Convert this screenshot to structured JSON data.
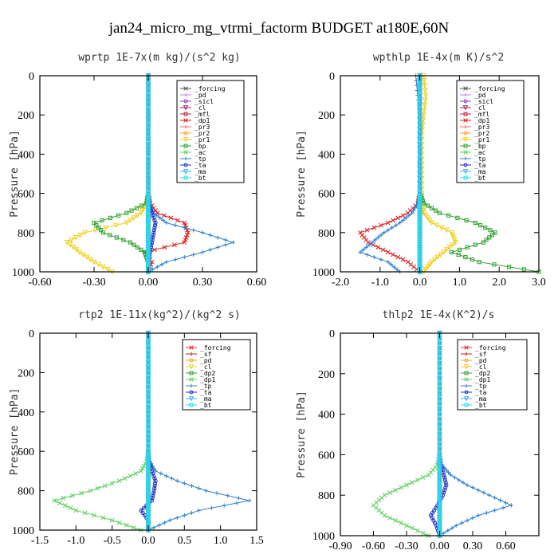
{
  "title": "jan24_micro_mg_vtrmi_factorm  BUDGET at180E,60N",
  "chart_data": [
    {
      "type": "line",
      "subtitle": "wprtp  1E-7x(m kg)/(s^2 kg)",
      "ylabel": "Pressure [hPa]",
      "xlim": [
        -0.6,
        0.6
      ],
      "ylim": [
        1000,
        0
      ],
      "xticks": [
        "-0.60",
        "-0.30",
        "0.00",
        "0.30",
        "0.60"
      ],
      "yticks": [
        "0",
        "200",
        "400",
        "600",
        "800",
        "1000"
      ],
      "pressure": [
        0,
        100,
        200,
        300,
        400,
        500,
        600,
        650,
        700,
        750,
        800,
        850,
        900,
        950,
        1000
      ],
      "series": [
        {
          "name": "_forcing",
          "color": "#555555",
          "values": [
            0,
            0,
            0,
            0,
            0,
            0,
            0,
            0,
            0,
            0,
            0,
            0,
            0,
            0,
            0
          ]
        },
        {
          "name": "_pd",
          "color": "#c080e0",
          "values": [
            0,
            0,
            0,
            0,
            0,
            0,
            0,
            0,
            0,
            0,
            0,
            0,
            0,
            0,
            0
          ]
        },
        {
          "name": "_sicl",
          "color": "#8040c0",
          "values": [
            0,
            0,
            0,
            0,
            0,
            0,
            0,
            0,
            0,
            0,
            0,
            0,
            0,
            0,
            0
          ]
        },
        {
          "name": "_cl",
          "color": "#a02060",
          "values": [
            0,
            0,
            0,
            0,
            0,
            0,
            0,
            0,
            0,
            0,
            0,
            0,
            0,
            0,
            0
          ]
        },
        {
          "name": "_mfl",
          "color": "#c02040",
          "values": [
            0,
            0,
            0,
            0,
            0,
            0,
            0,
            0,
            0,
            0,
            0,
            0,
            0,
            0,
            0
          ]
        },
        {
          "name": "_dp1",
          "color": "#e02020",
          "values": [
            0,
            0,
            0,
            0,
            0,
            0,
            0,
            0.01,
            0.05,
            0.2,
            0.22,
            0.2,
            -0.02,
            0.02,
            0
          ]
        },
        {
          "name": "_pr3",
          "color": "#ff6060",
          "values": [
            0,
            0,
            0,
            0,
            0,
            0,
            0,
            0,
            0,
            0,
            0,
            0,
            0,
            0,
            0
          ]
        },
        {
          "name": "_pr2",
          "color": "#ffa030",
          "values": [
            0,
            0,
            0,
            0,
            0,
            0,
            0,
            0,
            0,
            0,
            0,
            0,
            0,
            0,
            0
          ]
        },
        {
          "name": "_pr1",
          "color": "#f0d020",
          "values": [
            0,
            0,
            0,
            0,
            0,
            0,
            0,
            -0.01,
            -0.04,
            -0.12,
            -0.35,
            -0.45,
            -0.38,
            -0.3,
            -0.2
          ]
        },
        {
          "name": "_bp",
          "color": "#30a030",
          "values": [
            0,
            0,
            0,
            0,
            0,
            0,
            0,
            -0.01,
            -0.12,
            -0.3,
            -0.25,
            -0.1,
            -0.02,
            0,
            0
          ]
        },
        {
          "name": "_ac",
          "color": "#60d060",
          "values": [
            0,
            0,
            0,
            0,
            0,
            0,
            0,
            0,
            0,
            0,
            0,
            0,
            0,
            0,
            0
          ]
        },
        {
          "name": "_tp",
          "color": "#3080d0",
          "values": [
            0,
            0,
            0,
            0,
            0,
            0,
            0,
            0.01,
            0.03,
            0.1,
            0.3,
            0.47,
            0.3,
            0.1,
            0
          ]
        },
        {
          "name": "_ta",
          "color": "#2030c0",
          "values": [
            0,
            0,
            0,
            0,
            0,
            0,
            0,
            0,
            0.02,
            0.04,
            0.03,
            0.02,
            0.01,
            0,
            0
          ]
        },
        {
          "name": "_ma",
          "color": "#40b0f0",
          "values": [
            0,
            0,
            0,
            0,
            0,
            0,
            0,
            0,
            0,
            0,
            0,
            0,
            0,
            0,
            0
          ]
        },
        {
          "name": "_bt",
          "color": "#20e0f0",
          "values": [
            0,
            0,
            0,
            0,
            0,
            0,
            0,
            0,
            0,
            0,
            0,
            0,
            0,
            0,
            0
          ]
        }
      ]
    },
    {
      "type": "line",
      "subtitle": "wpthlp  1E-4x(m K)/s^2",
      "ylabel": "Pressure [hPa]",
      "xlim": [
        -2.0,
        3.0
      ],
      "ylim": [
        1000,
        0
      ],
      "xticks": [
        "-2.0",
        "-1.0",
        "0.0",
        "1.0",
        "2.0",
        "3.0"
      ],
      "yticks": [
        "0",
        "200",
        "400",
        "600",
        "800",
        "1000"
      ],
      "pressure": [
        0,
        100,
        200,
        300,
        400,
        500,
        600,
        650,
        700,
        750,
        800,
        850,
        900,
        950,
        1000
      ],
      "series": [
        {
          "name": "_forcing",
          "color": "#555555",
          "values": [
            0,
            0,
            0,
            0,
            0,
            0,
            0,
            0,
            0,
            0,
            0,
            0,
            0,
            0,
            0
          ]
        },
        {
          "name": "_pd",
          "color": "#c080e0",
          "values": [
            0,
            0,
            0,
            0,
            0,
            0,
            0,
            0,
            0,
            0,
            0,
            0,
            0,
            0,
            0
          ]
        },
        {
          "name": "_sicl",
          "color": "#8040c0",
          "values": [
            0,
            0,
            0,
            0,
            0,
            0,
            0,
            0,
            0,
            0,
            0,
            0,
            0,
            0,
            0
          ]
        },
        {
          "name": "_cl",
          "color": "#a02060",
          "values": [
            0,
            0,
            0,
            0,
            0,
            0,
            0,
            0,
            0,
            0,
            0,
            0,
            0,
            0,
            0
          ]
        },
        {
          "name": "_mfl",
          "color": "#c02040",
          "values": [
            0,
            0,
            0,
            0,
            0,
            0,
            0,
            0,
            0,
            0,
            0,
            0,
            0,
            0,
            0
          ]
        },
        {
          "name": "_dp1",
          "color": "#e02020",
          "values": [
            0,
            0,
            0,
            0,
            0,
            0,
            0,
            -0.05,
            -0.3,
            -0.8,
            -1.5,
            -1.3,
            -0.8,
            -0.3,
            0
          ]
        },
        {
          "name": "_pr3",
          "color": "#ff6060",
          "values": [
            0,
            0,
            0,
            0,
            0,
            0,
            0,
            0,
            0,
            0,
            0,
            0,
            0,
            0,
            0
          ]
        },
        {
          "name": "_pr2",
          "color": "#ffa030",
          "values": [
            0,
            0,
            0,
            0,
            0,
            0,
            0,
            0,
            0,
            0,
            0,
            0,
            0,
            0,
            0
          ]
        },
        {
          "name": "_pr1",
          "color": "#f0d020",
          "values": [
            0.1,
            0.15,
            0.1,
            0.05,
            0.05,
            0.05,
            0.05,
            0.05,
            0.1,
            0.3,
            0.8,
            0.9,
            0.6,
            0.3,
            0.1
          ]
        },
        {
          "name": "_bp",
          "color": "#30a030",
          "values": [
            0,
            0,
            0,
            0,
            0,
            0,
            0,
            0.1,
            0.5,
            1.4,
            1.9,
            1.6,
            0.8,
            1.5,
            3.0
          ]
        },
        {
          "name": "_ac",
          "color": "#60d060",
          "values": [
            0,
            0,
            0,
            0,
            0,
            0,
            0,
            0,
            0,
            0,
            0,
            0,
            0,
            0,
            0
          ]
        },
        {
          "name": "_tp",
          "color": "#3080d0",
          "values": [
            -0.1,
            -0.05,
            0,
            0,
            0,
            0,
            0,
            -0.05,
            -0.2,
            -0.5,
            -0.9,
            -1.2,
            -1.5,
            -0.8,
            -0.5
          ]
        },
        {
          "name": "_ta",
          "color": "#2030c0",
          "values": [
            0,
            0,
            0,
            0,
            0,
            0,
            0,
            0,
            0,
            0,
            0,
            0,
            0,
            0,
            0
          ]
        },
        {
          "name": "_ma",
          "color": "#40b0f0",
          "values": [
            0,
            0,
            0,
            0,
            0,
            0,
            0,
            0,
            0,
            0,
            0,
            0,
            0,
            0,
            0
          ]
        },
        {
          "name": "_bt",
          "color": "#20e0f0",
          "values": [
            0,
            0,
            0,
            0,
            0,
            0,
            0,
            0,
            0,
            0,
            0,
            0,
            0,
            0,
            0
          ]
        }
      ]
    },
    {
      "type": "line",
      "subtitle": "rtp2  1E-11x(kg^2)/(kg^2 s)",
      "ylabel": "Pressure [hPa]",
      "xlim": [
        -1.5,
        1.5
      ],
      "ylim": [
        1000,
        0
      ],
      "xticks": [
        "-1.5",
        "-1.0",
        "-0.5",
        "0.0",
        "0.5",
        "1.0",
        "1.5"
      ],
      "yticks": [
        "0",
        "200",
        "400",
        "600",
        "800",
        "1000"
      ],
      "pressure": [
        0,
        100,
        200,
        300,
        400,
        500,
        600,
        650,
        700,
        750,
        800,
        850,
        900,
        950,
        1000
      ],
      "series": [
        {
          "name": "_forcing",
          "color": "#e03030",
          "values": [
            0,
            0,
            0,
            0,
            0,
            0,
            0,
            0,
            0,
            0,
            0,
            0,
            0,
            0,
            0
          ]
        },
        {
          "name": "_sf",
          "color": "#c02020",
          "values": [
            0,
            0,
            0,
            0,
            0,
            0,
            0,
            0,
            0,
            0,
            0,
            0,
            0,
            0,
            0
          ]
        },
        {
          "name": "_pd",
          "color": "#ffa030",
          "values": [
            0,
            0,
            0,
            0,
            0,
            0,
            0,
            0,
            0,
            0,
            0,
            0,
            0,
            0,
            0
          ]
        },
        {
          "name": "_cl",
          "color": "#f0d020",
          "values": [
            0,
            0,
            0,
            0,
            0,
            0,
            0,
            0,
            0,
            0,
            0,
            0,
            0,
            0,
            0
          ]
        },
        {
          "name": "_dp2",
          "color": "#30a030",
          "values": [
            0,
            0,
            0,
            0,
            0,
            0,
            0,
            0,
            0,
            0,
            0,
            0,
            0,
            0,
            0
          ]
        },
        {
          "name": "_dp1",
          "color": "#60d060",
          "values": [
            0,
            0,
            0,
            0,
            0,
            0,
            0,
            -0.02,
            -0.1,
            -0.4,
            -0.8,
            -1.3,
            -1.0,
            -0.5,
            -0.1
          ]
        },
        {
          "name": "_tp",
          "color": "#3080d0",
          "values": [
            0,
            0,
            0,
            0,
            0,
            0,
            0,
            0.02,
            0.1,
            0.4,
            0.8,
            1.4,
            0.7,
            0.3,
            0
          ]
        },
        {
          "name": "_ta",
          "color": "#2030c0",
          "values": [
            0,
            0,
            0,
            0,
            0,
            0,
            0,
            0.01,
            0.05,
            0.1,
            0.08,
            0.05,
            -0.1,
            0,
            0
          ]
        },
        {
          "name": "_ma",
          "color": "#40b0f0",
          "values": [
            0,
            0,
            0,
            0,
            0,
            0,
            0,
            0,
            0,
            0,
            0,
            0,
            0,
            0,
            0
          ]
        },
        {
          "name": "_bt",
          "color": "#20e0f0",
          "values": [
            0,
            0,
            0,
            0,
            0,
            0,
            0,
            0,
            0,
            0,
            0,
            0,
            0,
            0,
            0
          ]
        }
      ]
    },
    {
      "type": "line",
      "subtitle": "thlp2  1E-4x(K^2)/s",
      "ylabel": "Pressure [hPa]",
      "xlim": [
        -0.9,
        0.9
      ],
      "ylim": [
        1000,
        0
      ],
      "xticks": [
        "-0.90",
        "-0.60",
        "-0.30",
        "0.00",
        "0.30",
        "0.60"
      ],
      "yticks": [
        "0",
        "200",
        "400",
        "600",
        "800",
        "1000"
      ],
      "pressure": [
        0,
        100,
        200,
        300,
        400,
        500,
        600,
        650,
        700,
        750,
        800,
        850,
        900,
        950,
        1000
      ],
      "series": [
        {
          "name": "_forcing",
          "color": "#e03030",
          "values": [
            0,
            0,
            0,
            0,
            0,
            0,
            0,
            0,
            0,
            0,
            0,
            0,
            0,
            0,
            0
          ]
        },
        {
          "name": "_sf",
          "color": "#c02020",
          "values": [
            0,
            0,
            0,
            0,
            0,
            0,
            0,
            0,
            0,
            0,
            0,
            0,
            0,
            0,
            0
          ]
        },
        {
          "name": "_pd",
          "color": "#ffa030",
          "values": [
            0,
            0,
            0,
            0,
            0,
            0,
            0,
            0,
            0,
            0,
            0,
            0,
            0,
            0,
            0
          ]
        },
        {
          "name": "_cl",
          "color": "#f0d020",
          "values": [
            0,
            0,
            0,
            0,
            0,
            0,
            0,
            0,
            0,
            0,
            0,
            0,
            0,
            0,
            0
          ]
        },
        {
          "name": "_dp2",
          "color": "#30a030",
          "values": [
            0,
            0,
            0,
            0,
            0,
            0,
            0,
            0,
            0,
            0,
            0,
            0,
            0,
            0,
            0
          ]
        },
        {
          "name": "_dp1",
          "color": "#60d060",
          "values": [
            0,
            0,
            0,
            0,
            0,
            0,
            0,
            -0.02,
            -0.1,
            -0.3,
            -0.5,
            -0.6,
            -0.5,
            -0.3,
            -0.1
          ]
        },
        {
          "name": "_tp",
          "color": "#3080d0",
          "values": [
            0,
            0,
            0,
            0,
            0,
            0,
            0,
            0.02,
            0.1,
            0.25,
            0.45,
            0.65,
            0.35,
            0.15,
            0
          ]
        },
        {
          "name": "_ta",
          "color": "#2030c0",
          "values": [
            0,
            0,
            0,
            0,
            0,
            0,
            0,
            0.01,
            0.04,
            0.06,
            0.03,
            -0.02,
            -0.08,
            -0.03,
            0
          ]
        },
        {
          "name": "_ma",
          "color": "#40b0f0",
          "values": [
            0,
            0,
            0,
            0,
            0,
            0,
            0,
            0,
            0,
            0,
            0,
            0,
            0,
            0,
            0
          ]
        },
        {
          "name": "_bt",
          "color": "#20e0f0",
          "values": [
            0,
            0,
            0,
            0,
            0,
            0,
            0,
            0,
            0,
            0,
            0,
            0,
            0,
            0,
            0
          ]
        }
      ]
    }
  ]
}
